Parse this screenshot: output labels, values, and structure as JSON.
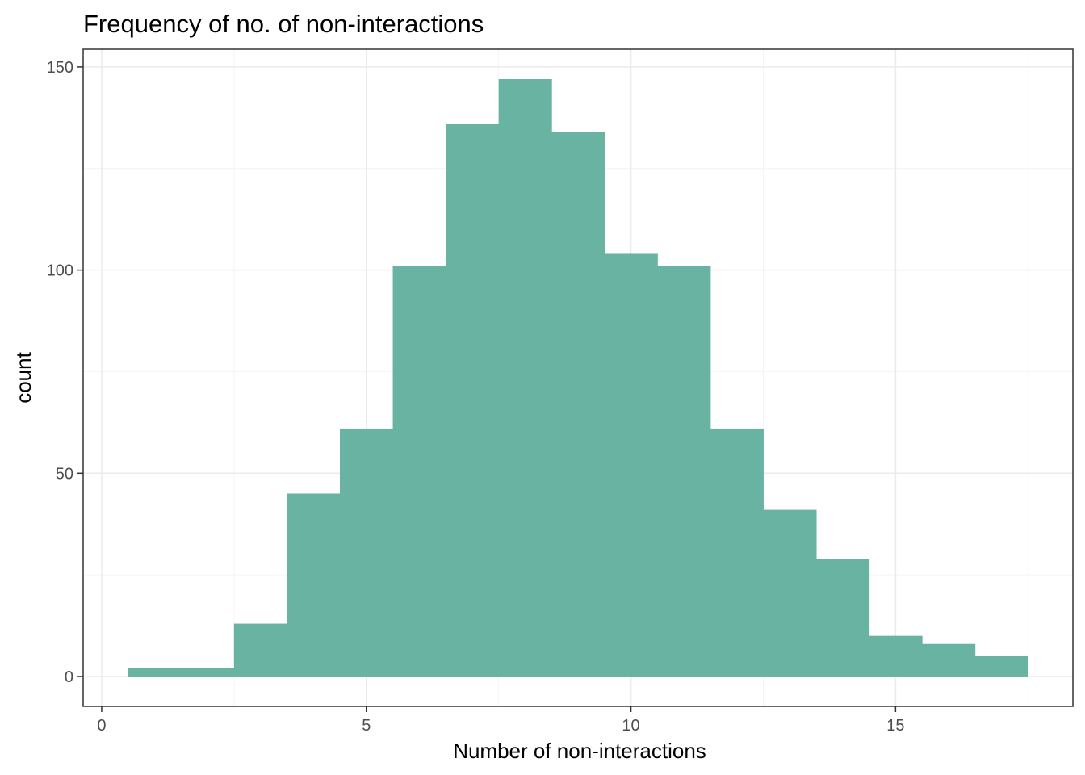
{
  "chart_data": {
    "type": "bar",
    "subtype": "histogram",
    "title": "Frequency of no. of non-interactions",
    "xlabel": "Number of non-interactions",
    "ylabel": "count",
    "binwidth": 1,
    "bins": [
      {
        "x": 1,
        "count": 2
      },
      {
        "x": 2,
        "count": 2
      },
      {
        "x": 3,
        "count": 13
      },
      {
        "x": 4,
        "count": 45
      },
      {
        "x": 5,
        "count": 61
      },
      {
        "x": 6,
        "count": 101
      },
      {
        "x": 7,
        "count": 136
      },
      {
        "x": 8,
        "count": 147
      },
      {
        "x": 9,
        "count": 134
      },
      {
        "x": 10,
        "count": 104
      },
      {
        "x": 11,
        "count": 101
      },
      {
        "x": 12,
        "count": 61
      },
      {
        "x": 13,
        "count": 41
      },
      {
        "x": 14,
        "count": 29
      },
      {
        "x": 15,
        "count": 10
      },
      {
        "x": 16,
        "count": 8
      },
      {
        "x": 17,
        "count": 5
      }
    ],
    "xlim": [
      -0.35,
      18.35
    ],
    "ylim": [
      -7.35,
      154.35
    ],
    "x_ticks": [
      0,
      5,
      10,
      15
    ],
    "x_tick_labels": [
      "0",
      "5",
      "10",
      "15"
    ],
    "y_ticks": [
      0,
      50,
      100,
      150
    ],
    "y_tick_labels": [
      "0",
      "50",
      "100",
      "150"
    ],
    "grid": true,
    "legend": "none",
    "colors": {
      "bar_fill": "#69b3a2",
      "grid_major": "#ebebeb",
      "grid_minor": "#f4f4f4",
      "panel_border": "#333333"
    }
  }
}
